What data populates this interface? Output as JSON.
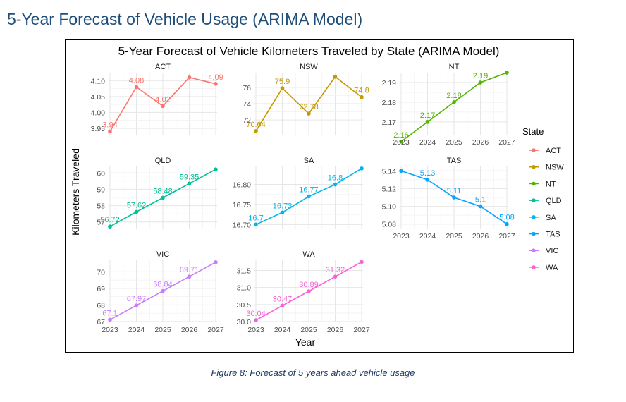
{
  "heading": "5-Year Forecast of Vehicle Usage (ARIMA Model)",
  "caption": "Figure 8: Forecast of 5 years ahead vehicle usage",
  "chart_data": {
    "type": "line",
    "title": "5-Year Forecast of Vehicle Kilometers Traveled by State (ARIMA Model)",
    "xlabel": "Year",
    "ylabel": "Kilometers Traveled",
    "x": [
      2023,
      2024,
      2025,
      2026,
      2027
    ],
    "grid": true,
    "legend_title": "State",
    "legend_position": "right",
    "facets": [
      {
        "name": "ACT",
        "color": "#F8766D",
        "values": [
          3.94,
          4.08,
          4.02,
          4.11,
          4.09
        ],
        "labels": [
          "3.94",
          "4.08",
          "4.02",
          "",
          "4.09"
        ],
        "ylim": [
          3.93,
          4.125
        ],
        "yticks": [
          3.95,
          4.0,
          4.05,
          4.1
        ],
        "yticklabels": [
          "3.95",
          "4.00",
          "4.05",
          "4.10"
        ],
        "show_x": false
      },
      {
        "name": "NSW",
        "color": "#C49A00",
        "values": [
          70.64,
          75.9,
          72.78,
          77.3,
          74.8
        ],
        "labels": [
          "70.64",
          "75.9",
          "72.78",
          "",
          "74.8"
        ],
        "ylim": [
          70.2,
          77.8
        ],
        "yticks": [
          72,
          74,
          76
        ],
        "yticklabels": [
          "72",
          "74",
          "76"
        ],
        "show_x": false
      },
      {
        "name": "NT",
        "color": "#53B400",
        "values": [
          2.16,
          2.17,
          2.18,
          2.19,
          2.195
        ],
        "labels": [
          "2.16",
          "2.17",
          "2.18",
          "2.19",
          ""
        ],
        "ylim": [
          2.1635,
          2.195
        ],
        "yticks": [
          2.17,
          2.18,
          2.19
        ],
        "yticklabels": [
          "2.17",
          "2.18",
          "2.19"
        ],
        "show_x": true
      },
      {
        "name": "QLD",
        "color": "#00C094",
        "values": [
          56.72,
          57.62,
          58.48,
          59.35,
          60.22
        ],
        "labels": [
          "56.72",
          "57.62",
          "58.48",
          "59.35",
          ""
        ],
        "ylim": [
          56.6,
          60.4
        ],
        "yticks": [
          57,
          58,
          59,
          60
        ],
        "yticklabels": [
          "57",
          "58",
          "59",
          "60"
        ],
        "show_x": false
      },
      {
        "name": "SA",
        "color": "#00B6EB",
        "values": [
          16.7,
          16.73,
          16.77,
          16.8,
          16.84
        ],
        "labels": [
          "16.7",
          "16.73",
          "16.77",
          "16.8",
          ""
        ],
        "ylim": [
          16.69,
          16.845
        ],
        "yticks": [
          16.7,
          16.75,
          16.8
        ],
        "yticklabels": [
          "16.70",
          "16.75",
          "16.80"
        ],
        "show_x": false
      },
      {
        "name": "TAS",
        "color": "#06A4FF",
        "values": [
          5.14,
          5.13,
          5.11,
          5.1,
          5.08
        ],
        "labels": [
          "",
          "5.13",
          "5.11",
          "5.1",
          "5.08"
        ],
        "ylim": [
          5.075,
          5.145
        ],
        "yticks": [
          5.08,
          5.1,
          5.12,
          5.14
        ],
        "yticklabels": [
          "5.08",
          "5.10",
          "5.12",
          "5.14"
        ],
        "show_x": true
      },
      {
        "name": "VIC",
        "color": "#C77CFF",
        "values": [
          67.1,
          67.97,
          68.84,
          69.71,
          70.58
        ],
        "labels": [
          "67.1",
          "67.97",
          "68.84",
          "69.71",
          ""
        ],
        "ylim": [
          66.95,
          70.7
        ],
        "yticks": [
          67,
          68,
          69,
          70
        ],
        "yticklabels": [
          "67",
          "68",
          "69",
          "70"
        ],
        "show_x": true
      },
      {
        "name": "WA",
        "color": "#FB61D7",
        "values": [
          30.04,
          30.47,
          30.89,
          31.32,
          31.75
        ],
        "labels": [
          "30.04",
          "30.47",
          "30.89",
          "31.32",
          ""
        ],
        "ylim": [
          29.98,
          31.8
        ],
        "yticks": [
          30.0,
          30.5,
          31.0,
          31.5
        ],
        "yticklabels": [
          "30.0",
          "30.5",
          "31.0",
          "31.5"
        ],
        "show_x": true
      }
    ]
  }
}
